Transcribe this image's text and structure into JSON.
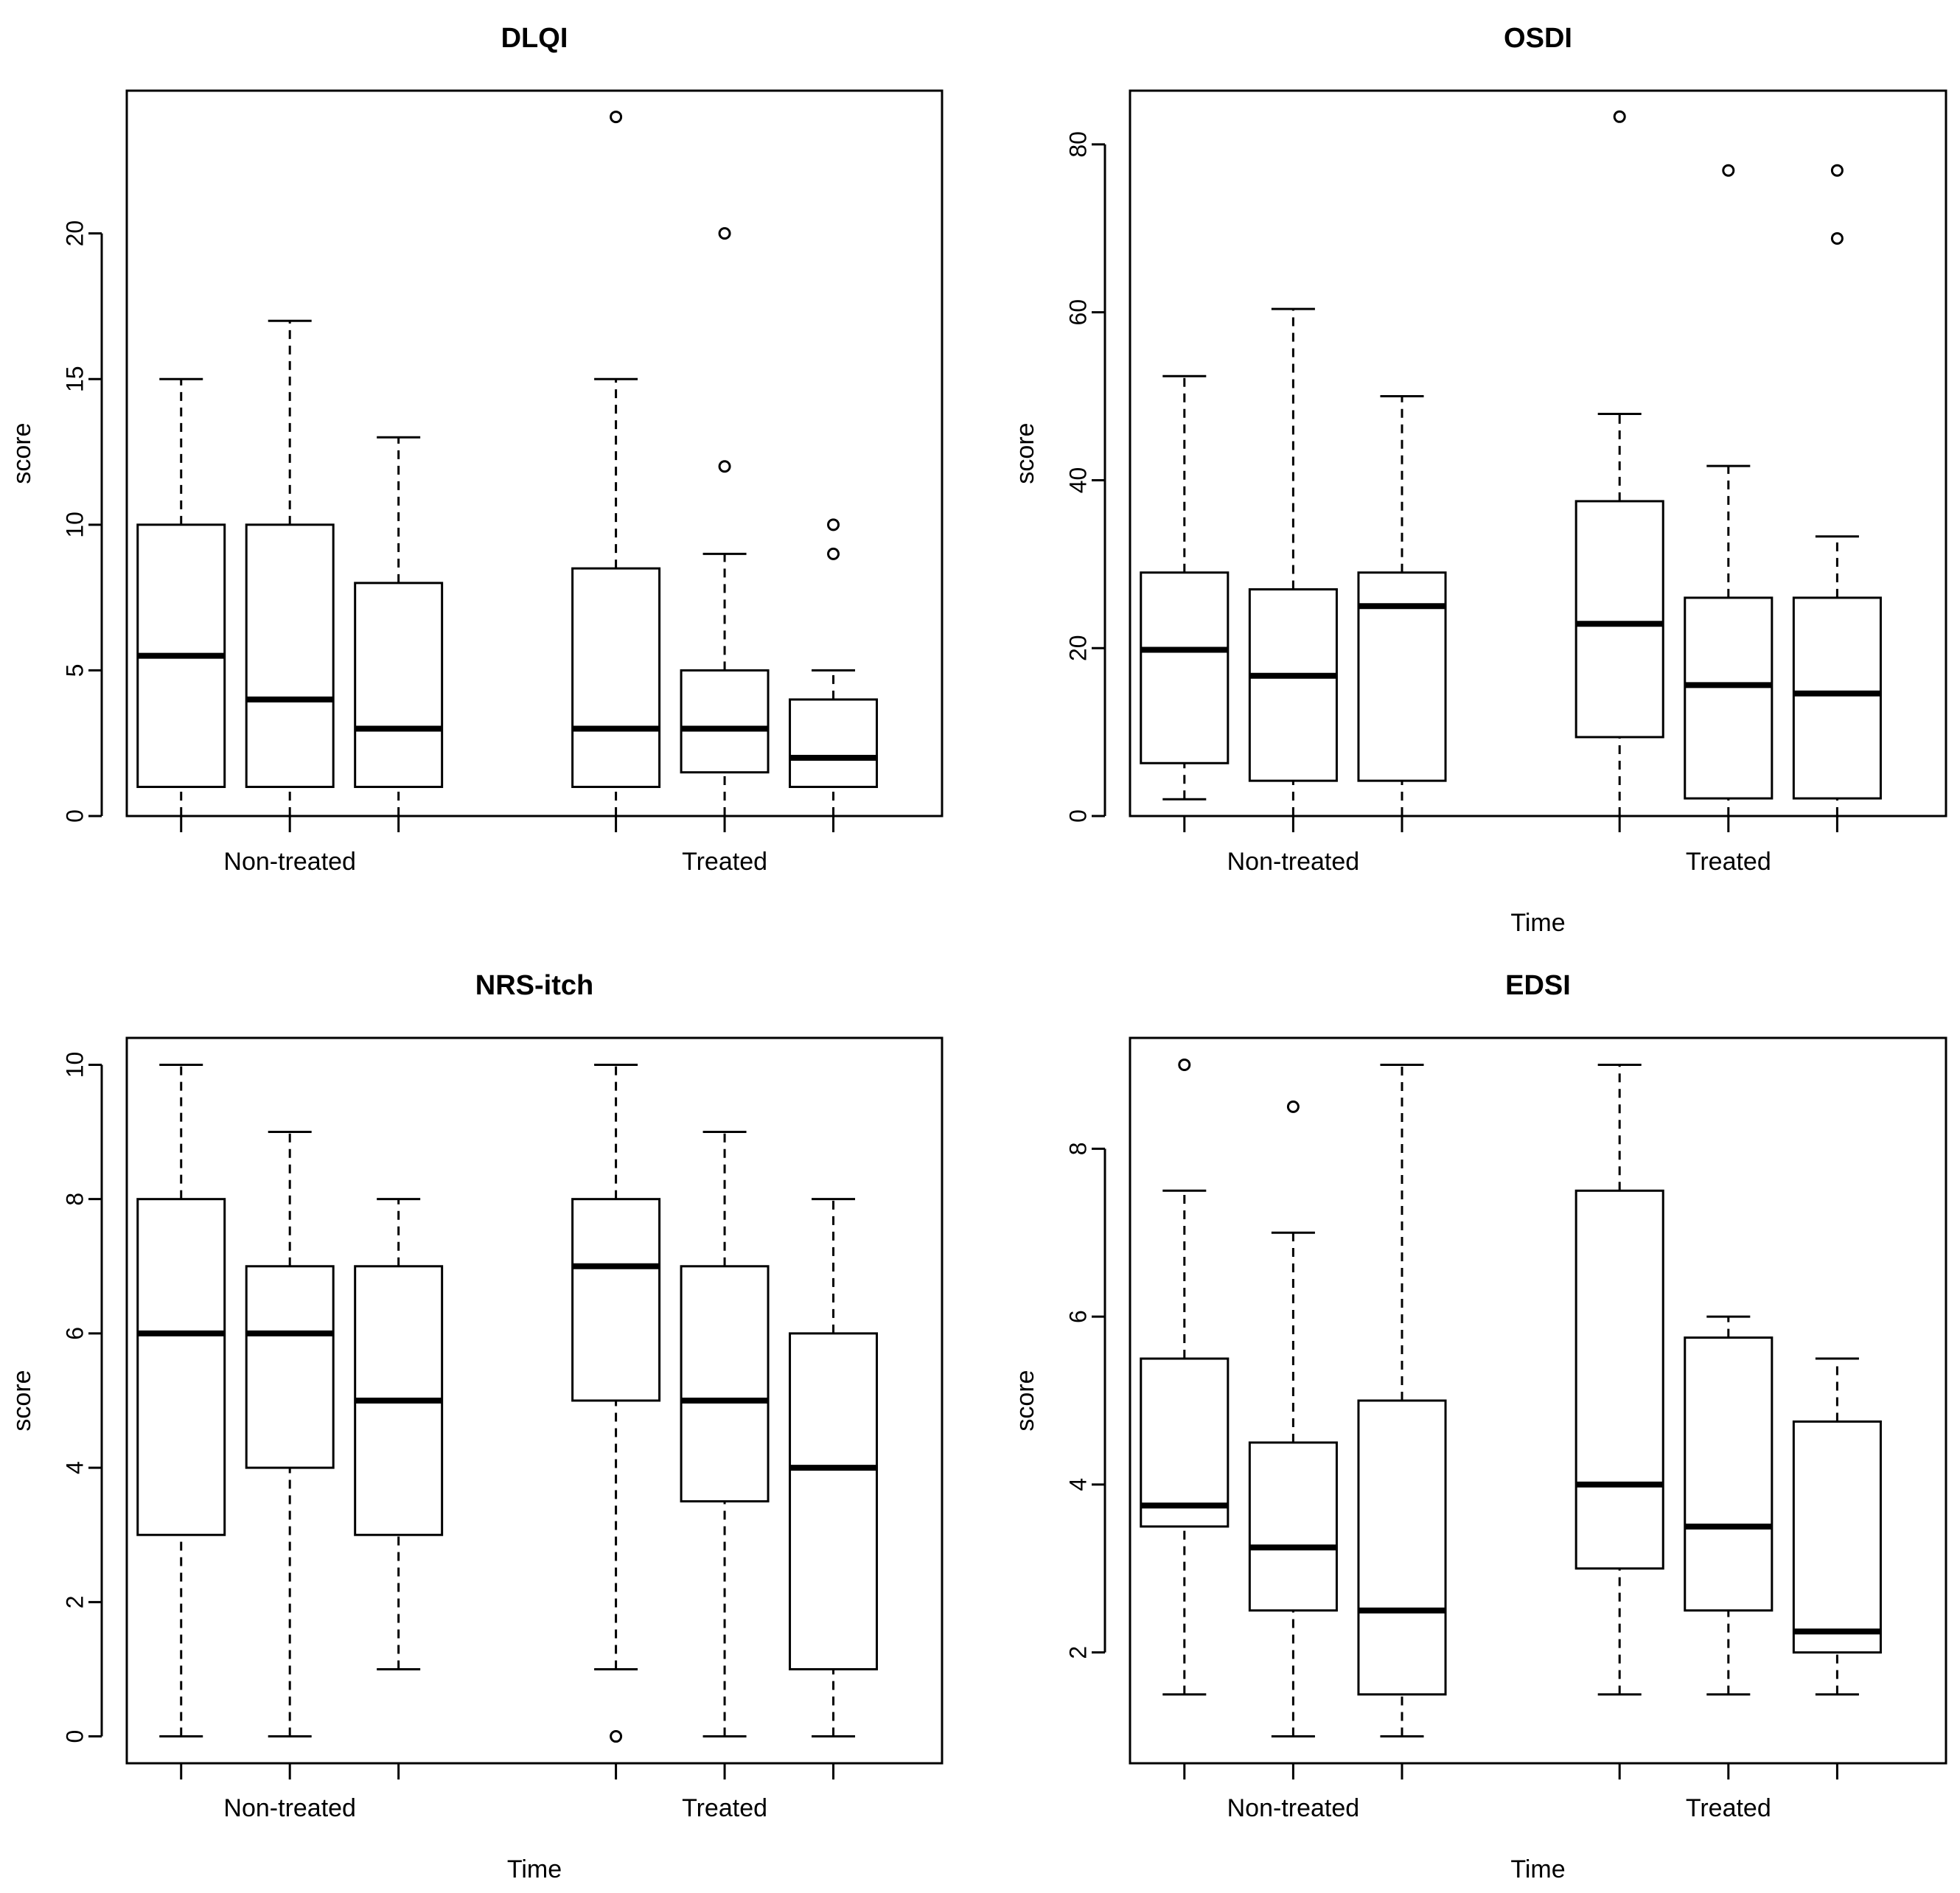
{
  "chart_data": [
    {
      "type": "boxplot",
      "title": "DLQI",
      "ylabel": "score",
      "xlabel": "",
      "ylim": [
        0,
        24.9
      ],
      "yticks": [
        0,
        5,
        10,
        15,
        20
      ],
      "groups": [
        "Non-treated",
        "Treated"
      ],
      "boxes": [
        {
          "group": "Non-treated",
          "min": 0,
          "q1": 1,
          "median": 5.5,
          "q3": 10,
          "max": 15,
          "outliers": []
        },
        {
          "group": "Non-treated",
          "min": 0,
          "q1": 1,
          "median": 4,
          "q3": 10,
          "max": 17,
          "outliers": []
        },
        {
          "group": "Non-treated",
          "min": 0,
          "q1": 1,
          "median": 3,
          "q3": 8,
          "max": 13,
          "outliers": []
        },
        {
          "group": "Treated",
          "min": 0,
          "q1": 1,
          "median": 3,
          "q3": 8.5,
          "max": 15,
          "outliers": [
            24
          ]
        },
        {
          "group": "Treated",
          "min": 0,
          "q1": 1.5,
          "median": 3,
          "q3": 5,
          "max": 9,
          "outliers": [
            12,
            20
          ]
        },
        {
          "group": "Treated",
          "min": 0,
          "q1": 1,
          "median": 2,
          "q3": 4,
          "max": 5,
          "outliers": [
            9,
            10
          ]
        }
      ]
    },
    {
      "type": "boxplot",
      "title": "OSDI",
      "ylabel": "score",
      "xlabel": "Time",
      "ylim": [
        0,
        86.4
      ],
      "yticks": [
        0,
        20,
        40,
        60,
        80
      ],
      "groups": [
        "Non-treated",
        "Treated"
      ],
      "boxes": [
        {
          "group": "Non-treated",
          "min": 2,
          "q1": 6.3,
          "median": 19.8,
          "q3": 29,
          "max": 52.4,
          "outliers": []
        },
        {
          "group": "Non-treated",
          "min": 0,
          "q1": 4.2,
          "median": 16.7,
          "q3": 27,
          "max": 60.4,
          "outliers": []
        },
        {
          "group": "Non-treated",
          "min": 0,
          "q1": 4.2,
          "median": 25,
          "q3": 29,
          "max": 50,
          "outliers": []
        },
        {
          "group": "Treated",
          "min": 0,
          "q1": 9.4,
          "median": 22.9,
          "q3": 37.5,
          "max": 47.9,
          "outliers": [
            83.3
          ]
        },
        {
          "group": "Treated",
          "min": 0,
          "q1": 2.1,
          "median": 15.6,
          "q3": 26,
          "max": 41.7,
          "outliers": [
            76.9
          ]
        },
        {
          "group": "Treated",
          "min": 0,
          "q1": 2.1,
          "median": 14.6,
          "q3": 26,
          "max": 33.3,
          "outliers": [
            68.8,
            76.9
          ]
        }
      ]
    },
    {
      "type": "boxplot",
      "title": "NRS-itch",
      "ylabel": "score",
      "xlabel": "Time",
      "ylim": [
        -0.4,
        10.4
      ],
      "yticks": [
        0,
        2,
        4,
        6,
        8,
        10
      ],
      "groups": [
        "Non-treated",
        "Treated"
      ],
      "boxes": [
        {
          "group": "Non-treated",
          "min": 0,
          "q1": 3,
          "median": 6,
          "q3": 8,
          "max": 10,
          "outliers": []
        },
        {
          "group": "Non-treated",
          "min": 0,
          "q1": 4,
          "median": 6,
          "q3": 7,
          "max": 9,
          "outliers": []
        },
        {
          "group": "Non-treated",
          "min": 1,
          "q1": 3,
          "median": 5,
          "q3": 7,
          "max": 8,
          "outliers": []
        },
        {
          "group": "Treated",
          "min": 1,
          "q1": 5,
          "median": 7,
          "q3": 8,
          "max": 10,
          "outliers": [
            0
          ]
        },
        {
          "group": "Treated",
          "min": 0,
          "q1": 3.5,
          "median": 5,
          "q3": 7,
          "max": 9,
          "outliers": []
        },
        {
          "group": "Treated",
          "min": 0,
          "q1": 1,
          "median": 4,
          "q3": 6,
          "max": 8,
          "outliers": []
        }
      ]
    },
    {
      "type": "boxplot",
      "title": "EDSI",
      "ylabel": "score",
      "xlabel": "Time",
      "ylim": [
        0.68,
        9.32
      ],
      "yticks": [
        2,
        4,
        6,
        8
      ],
      "groups": [
        "Non-treated",
        "Treated"
      ],
      "boxes": [
        {
          "group": "Non-treated",
          "min": 1.5,
          "q1": 3.5,
          "median": 3.75,
          "q3": 5.5,
          "max": 7.5,
          "outliers": [
            9
          ]
        },
        {
          "group": "Non-treated",
          "min": 1,
          "q1": 2.5,
          "median": 3.25,
          "q3": 4.5,
          "max": 7,
          "outliers": [
            8.5
          ]
        },
        {
          "group": "Non-treated",
          "min": 1,
          "q1": 1.5,
          "median": 2.5,
          "q3": 5,
          "max": 9,
          "outliers": []
        },
        {
          "group": "Treated",
          "min": 1.5,
          "q1": 3,
          "median": 4,
          "q3": 7.5,
          "max": 9,
          "outliers": []
        },
        {
          "group": "Treated",
          "min": 1.5,
          "q1": 2.5,
          "median": 3.5,
          "q3": 5.75,
          "max": 6,
          "outliers": []
        },
        {
          "group": "Treated",
          "min": 1.5,
          "q1": 2,
          "median": 2.25,
          "q3": 4.75,
          "max": 5.5,
          "outliers": []
        }
      ]
    }
  ]
}
